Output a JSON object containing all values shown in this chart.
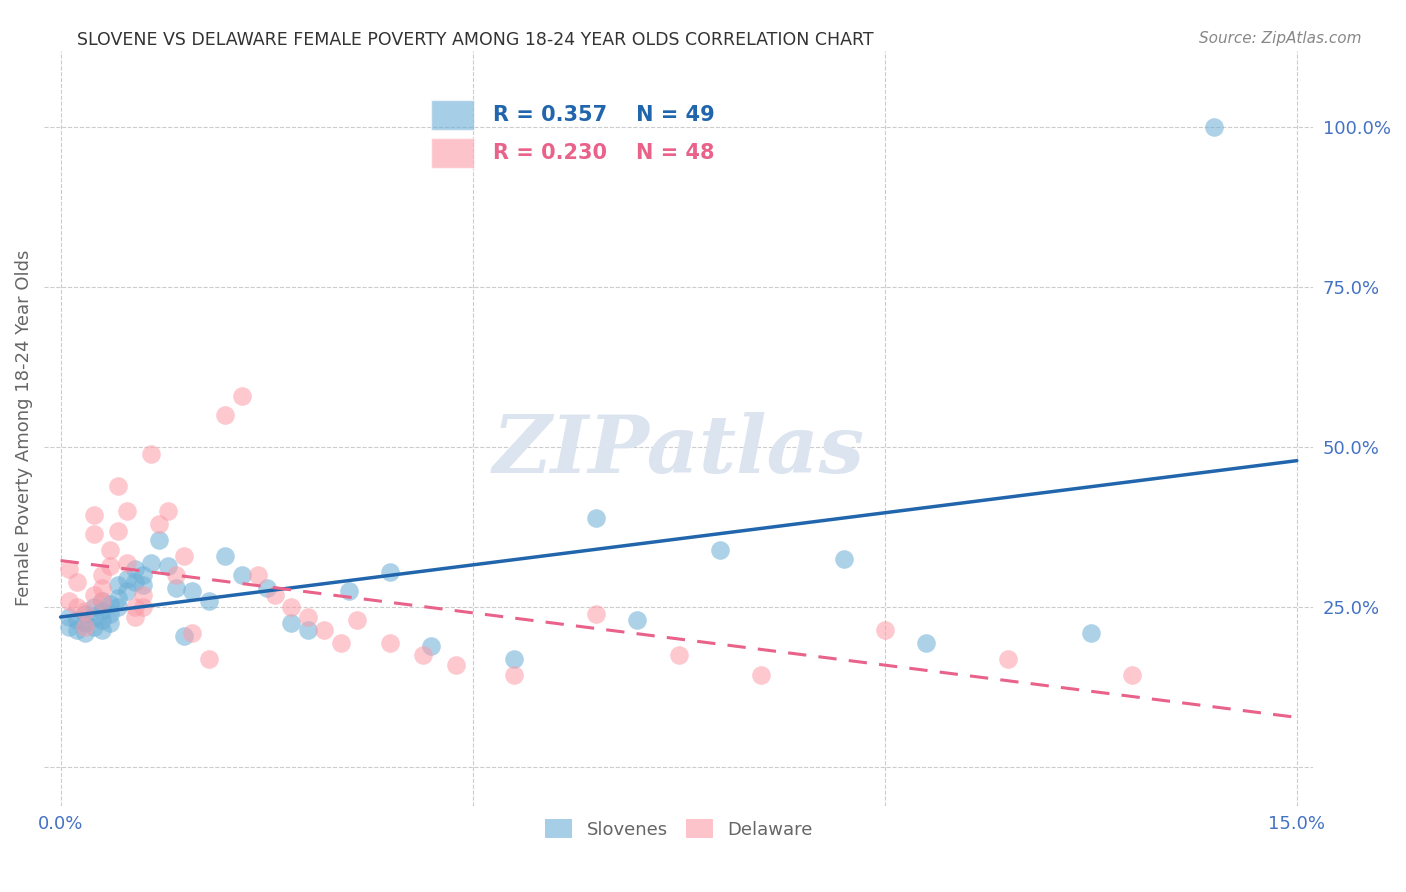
{
  "title": "SLOVENE VS DELAWARE FEMALE POVERTY AMONG 18-24 YEAR OLDS CORRELATION CHART",
  "source": "Source: ZipAtlas.com",
  "ylabel": "Female Poverty Among 18-24 Year Olds",
  "xlim": [
    0.0,
    0.15
  ],
  "ylim": [
    -0.05,
    1.1
  ],
  "slovene_R": 0.357,
  "slovene_N": 49,
  "delaware_R": 0.23,
  "delaware_N": 48,
  "slovene_color": "#6baed6",
  "delaware_color": "#fc9ba7",
  "slovene_line_color": "#2166ac",
  "delaware_line_color": "#e8628a",
  "watermark": "ZIPatlas",
  "watermark_color": "#dce4f0",
  "label_color": "#4472c4",
  "text_color": "#666666",
  "slovene_x": [
    0.001,
    0.001,
    0.002,
    0.002,
    0.003,
    0.003,
    0.003,
    0.004,
    0.004,
    0.004,
    0.005,
    0.005,
    0.005,
    0.005,
    0.006,
    0.006,
    0.006,
    0.007,
    0.007,
    0.007,
    0.008,
    0.008,
    0.009,
    0.009,
    0.01,
    0.01,
    0.011,
    0.012,
    0.013,
    0.014,
    0.015,
    0.016,
    0.018,
    0.02,
    0.022,
    0.025,
    0.028,
    0.03,
    0.035,
    0.04,
    0.045,
    0.055,
    0.065,
    0.07,
    0.08,
    0.095,
    0.105,
    0.125,
    0.14
  ],
  "slovene_y": [
    0.235,
    0.22,
    0.23,
    0.215,
    0.24,
    0.225,
    0.21,
    0.25,
    0.235,
    0.22,
    0.26,
    0.245,
    0.23,
    0.215,
    0.255,
    0.24,
    0.225,
    0.285,
    0.265,
    0.25,
    0.295,
    0.275,
    0.31,
    0.29,
    0.3,
    0.285,
    0.32,
    0.355,
    0.315,
    0.28,
    0.205,
    0.275,
    0.26,
    0.33,
    0.3,
    0.28,
    0.225,
    0.215,
    0.275,
    0.305,
    0.19,
    0.17,
    0.39,
    0.23,
    0.34,
    0.325,
    0.195,
    0.21,
    1.0
  ],
  "delaware_x": [
    0.001,
    0.001,
    0.002,
    0.002,
    0.003,
    0.003,
    0.004,
    0.004,
    0.004,
    0.005,
    0.005,
    0.005,
    0.006,
    0.006,
    0.007,
    0.007,
    0.008,
    0.008,
    0.009,
    0.009,
    0.01,
    0.01,
    0.011,
    0.012,
    0.013,
    0.014,
    0.015,
    0.016,
    0.018,
    0.02,
    0.022,
    0.024,
    0.026,
    0.028,
    0.03,
    0.032,
    0.034,
    0.036,
    0.04,
    0.044,
    0.048,
    0.055,
    0.065,
    0.075,
    0.085,
    0.1,
    0.115,
    0.13
  ],
  "delaware_y": [
    0.31,
    0.26,
    0.29,
    0.25,
    0.245,
    0.22,
    0.395,
    0.365,
    0.27,
    0.3,
    0.28,
    0.26,
    0.34,
    0.315,
    0.37,
    0.44,
    0.4,
    0.32,
    0.235,
    0.25,
    0.27,
    0.25,
    0.49,
    0.38,
    0.4,
    0.3,
    0.33,
    0.21,
    0.17,
    0.55,
    0.58,
    0.3,
    0.27,
    0.25,
    0.235,
    0.215,
    0.195,
    0.23,
    0.195,
    0.175,
    0.16,
    0.145,
    0.24,
    0.175,
    0.145,
    0.215,
    0.17,
    0.145
  ]
}
